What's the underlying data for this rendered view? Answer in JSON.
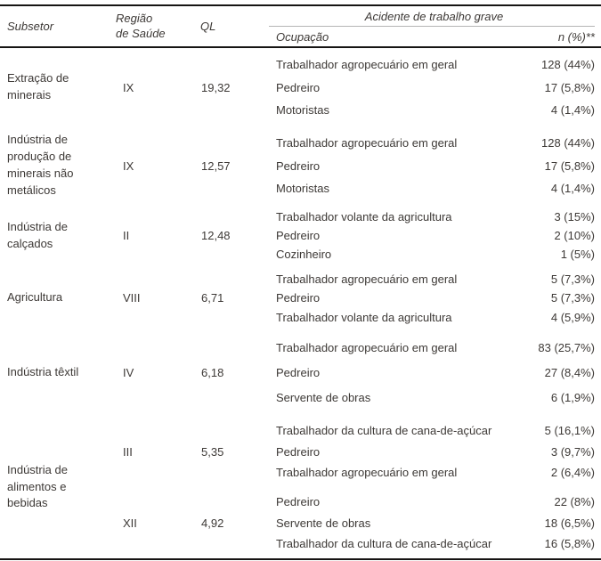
{
  "header": {
    "subsetor": "Subsetor",
    "regiao": "Região\nde Saúde",
    "ql": "QL",
    "group_title": "Acidente de trabalho grave",
    "ocupacao": "Ocupação",
    "n": "n (%)**"
  },
  "sections": [
    {
      "subsetor": "Extração de minerais",
      "groups": [
        {
          "regiao": "IX",
          "ql": "19,32",
          "rows": [
            {
              "ocupacao": "Trabalhador agropecuário em geral",
              "n": "128 (44%)"
            },
            {
              "ocupacao": "Pedreiro",
              "n": "17 (5,8%)"
            },
            {
              "ocupacao": "Motoristas",
              "n": "4 (1,4%)"
            }
          ]
        }
      ]
    },
    {
      "subsetor": "Indústria de produção de minerais não metálicos",
      "groups": [
        {
          "regiao": "IX",
          "ql": "12,57",
          "rows": [
            {
              "ocupacao": "Trabalhador agropecuário em geral",
              "n": "128 (44%)"
            },
            {
              "ocupacao": "Pedreiro",
              "n": "17 (5,8%)"
            },
            {
              "ocupacao": "Motoristas",
              "n": "4 (1,4%)"
            }
          ]
        }
      ]
    },
    {
      "subsetor": "Indústria de calçados",
      "groups": [
        {
          "regiao": "II",
          "ql": "12,48",
          "rows": [
            {
              "ocupacao": "Trabalhador volante da agricultura",
              "n": "3 (15%)"
            },
            {
              "ocupacao": "Pedreiro",
              "n": "2 (10%)"
            },
            {
              "ocupacao": "Cozinheiro",
              "n": "1 (5%)"
            }
          ]
        }
      ]
    },
    {
      "subsetor": "Agricultura",
      "groups": [
        {
          "regiao": "VIII",
          "ql": "6,71",
          "rows": [
            {
              "ocupacao": "Trabalhador agropecuário em geral",
              "n": "5 (7,3%)"
            },
            {
              "ocupacao": "Pedreiro",
              "n": "5 (7,3%)"
            },
            {
              "ocupacao": "Trabalhador volante da agricultura",
              "n": "4 (5,9%)"
            }
          ]
        }
      ]
    },
    {
      "subsetor": "Indústria têxtil",
      "groups": [
        {
          "regiao": "IV",
          "ql": "6,18",
          "rows": [
            {
              "ocupacao": "Trabalhador agropecuário em geral",
              "n": "83 (25,7%)"
            },
            {
              "ocupacao": "Pedreiro",
              "n": "27 (8,4%)"
            },
            {
              "ocupacao": "Servente de obras",
              "n": "6 (1,9%)"
            }
          ]
        }
      ]
    },
    {
      "subsetor": "Indústria de alimentos e bebidas",
      "groups": [
        {
          "regiao": "III",
          "ql": "5,35",
          "rows": [
            {
              "ocupacao": "Trabalhador da cultura de cana-de-açúcar",
              "n": "5 (16,1%)"
            },
            {
              "ocupacao": "Pedreiro",
              "n": "3 (9,7%)"
            },
            {
              "ocupacao": "Trabalhador agropecuário em geral",
              "n": "2 (6,4%)"
            }
          ]
        },
        {
          "regiao": "XII",
          "ql": "4,92",
          "rows": [
            {
              "ocupacao": "Pedreiro",
              "n": "22 (8%)"
            },
            {
              "ocupacao": "Servente de obras",
              "n": "18 (6,5%)"
            },
            {
              "ocupacao": "Trabalhador da cultura de cana-de-açúcar",
              "n": "16 (5,8%)"
            }
          ]
        }
      ]
    }
  ]
}
